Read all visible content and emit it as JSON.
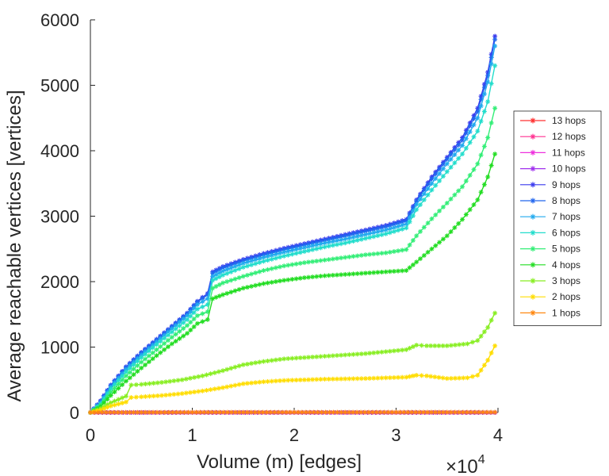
{
  "chart_data": {
    "type": "line",
    "title": "",
    "xlabel": "Volume (m) [edges]",
    "ylabel": "Average reachable vertices [vertices]",
    "x_multiplier_label": "×10",
    "x_multiplier_exponent": "4",
    "xlim": [
      0,
      4
    ],
    "ylim": [
      0,
      6000
    ],
    "x_ticks": [
      0,
      1,
      2,
      3,
      4
    ],
    "x_tick_labels": [
      "0",
      "1",
      "2",
      "3",
      "4"
    ],
    "y_ticks": [
      0,
      1000,
      2000,
      3000,
      4000,
      5000,
      6000
    ],
    "y_tick_labels": [
      "0",
      "1000",
      "2000",
      "3000",
      "4000",
      "5000",
      "6000"
    ],
    "legend_position": "right",
    "marker": "asterisk",
    "series": [
      {
        "name": "13 hops",
        "color": "#ff3030",
        "x": [
          0,
          1,
          2,
          3,
          3.97
        ],
        "values": [
          0,
          0,
          0,
          0,
          0
        ]
      },
      {
        "name": "12 hops",
        "color": "#ff3090",
        "x": [
          0,
          1,
          2,
          3,
          3.97
        ],
        "values": [
          0,
          0,
          0,
          0,
          0
        ]
      },
      {
        "name": "11 hops",
        "color": "#ee30dd",
        "x": [
          0,
          1,
          2,
          3,
          3.97
        ],
        "values": [
          0,
          0,
          0,
          0,
          0
        ]
      },
      {
        "name": "10 hops",
        "color": "#a030ee",
        "x": [
          0,
          1,
          2,
          3,
          3.97
        ],
        "values": [
          0,
          0,
          0,
          0,
          0
        ]
      },
      {
        "name": "9 hops",
        "color": "#3a3aee",
        "x": [
          0,
          0.1,
          0.2,
          0.35,
          0.5,
          0.65,
          0.8,
          0.95,
          1.05,
          1.15,
          1.2,
          1.3,
          1.5,
          1.7,
          1.9,
          2.1,
          2.3,
          2.5,
          2.7,
          2.9,
          3.1,
          3.2,
          3.35,
          3.5,
          3.65,
          3.8,
          3.9,
          3.97
        ],
        "values": [
          0,
          180,
          420,
          700,
          920,
          1120,
          1320,
          1520,
          1700,
          1820,
          2150,
          2230,
          2340,
          2430,
          2510,
          2580,
          2650,
          2720,
          2790,
          2860,
          2950,
          3250,
          3600,
          3900,
          4200,
          4650,
          5200,
          5750
        ]
      },
      {
        "name": "8 hops",
        "color": "#2266ee",
        "x": [
          0,
          0.1,
          0.2,
          0.35,
          0.5,
          0.65,
          0.8,
          0.95,
          1.05,
          1.15,
          1.2,
          1.3,
          1.5,
          1.7,
          1.9,
          2.1,
          2.3,
          2.5,
          2.7,
          2.9,
          3.1,
          3.2,
          3.35,
          3.5,
          3.65,
          3.8,
          3.9,
          3.97
        ],
        "values": [
          0,
          170,
          410,
          690,
          910,
          1110,
          1310,
          1510,
          1690,
          1800,
          2130,
          2210,
          2320,
          2410,
          2490,
          2560,
          2630,
          2700,
          2770,
          2840,
          2930,
          3230,
          3570,
          3870,
          4160,
          4600,
          5150,
          5700
        ]
      },
      {
        "name": "7 hops",
        "color": "#22aaee",
        "x": [
          0,
          0.1,
          0.2,
          0.35,
          0.5,
          0.65,
          0.8,
          0.95,
          1.05,
          1.15,
          1.2,
          1.3,
          1.5,
          1.7,
          1.9,
          2.1,
          2.3,
          2.5,
          2.7,
          2.9,
          3.1,
          3.2,
          3.35,
          3.5,
          3.65,
          3.8,
          3.9,
          3.97
        ],
        "values": [
          0,
          150,
          390,
          660,
          880,
          1080,
          1280,
          1480,
          1650,
          1740,
          2080,
          2160,
          2280,
          2370,
          2450,
          2520,
          2590,
          2650,
          2720,
          2790,
          2880,
          3180,
          3500,
          3800,
          4080,
          4500,
          5050,
          5600
        ]
      },
      {
        "name": "6 hops",
        "color": "#22ddcc",
        "x": [
          0,
          0.1,
          0.2,
          0.35,
          0.5,
          0.65,
          0.8,
          0.95,
          1.05,
          1.15,
          1.2,
          1.3,
          1.5,
          1.7,
          1.9,
          2.1,
          2.3,
          2.5,
          2.7,
          2.9,
          3.1,
          3.2,
          3.35,
          3.5,
          3.65,
          3.8,
          3.9,
          3.97
        ],
        "values": [
          0,
          130,
          360,
          620,
          840,
          1040,
          1230,
          1420,
          1580,
          1650,
          2020,
          2100,
          2220,
          2310,
          2390,
          2460,
          2530,
          2590,
          2660,
          2730,
          2820,
          3100,
          3400,
          3680,
          3950,
          4300,
          4750,
          5300
        ]
      },
      {
        "name": "5 hops",
        "color": "#33ee77",
        "x": [
          0,
          0.1,
          0.2,
          0.35,
          0.5,
          0.65,
          0.8,
          0.95,
          1.05,
          1.15,
          1.2,
          1.3,
          1.5,
          1.7,
          1.9,
          2.1,
          2.3,
          2.5,
          2.7,
          2.9,
          3.1,
          3.2,
          3.35,
          3.5,
          3.65,
          3.8,
          3.9,
          3.97
        ],
        "values": [
          0,
          110,
          310,
          560,
          770,
          960,
          1150,
          1330,
          1480,
          1540,
          1900,
          1980,
          2080,
          2170,
          2240,
          2290,
          2330,
          2370,
          2410,
          2440,
          2490,
          2700,
          2960,
          3200,
          3450,
          3800,
          4200,
          4650
        ]
      },
      {
        "name": "4 hops",
        "color": "#22dd22",
        "x": [
          0,
          0.1,
          0.2,
          0.35,
          0.5,
          0.65,
          0.8,
          0.95,
          1.05,
          1.15,
          1.2,
          1.3,
          1.5,
          1.7,
          1.9,
          2.1,
          2.3,
          2.5,
          2.7,
          2.9,
          3.1,
          3.2,
          3.35,
          3.5,
          3.65,
          3.8,
          3.9,
          3.97
        ],
        "values": [
          0,
          90,
          260,
          480,
          680,
          870,
          1050,
          1210,
          1360,
          1420,
          1740,
          1800,
          1900,
          1970,
          2020,
          2060,
          2090,
          2110,
          2130,
          2150,
          2170,
          2300,
          2500,
          2700,
          2950,
          3250,
          3600,
          3950
        ]
      },
      {
        "name": "3 hops",
        "color": "#88ee22",
        "x": [
          0,
          0.1,
          0.2,
          0.35,
          0.4,
          0.5,
          0.7,
          0.9,
          1.1,
          1.3,
          1.5,
          1.7,
          1.9,
          2.1,
          2.3,
          2.5,
          2.7,
          2.9,
          3.1,
          3.2,
          3.3,
          3.5,
          3.7,
          3.8,
          3.9,
          3.97
        ],
        "values": [
          0,
          60,
          150,
          250,
          420,
          430,
          460,
          500,
          560,
          640,
          730,
          780,
          820,
          840,
          860,
          880,
          900,
          930,
          960,
          1030,
          1020,
          1020,
          1050,
          1100,
          1300,
          1520
        ]
      },
      {
        "name": "2 hops",
        "color": "#ffdd00",
        "x": [
          0,
          0.1,
          0.2,
          0.35,
          0.4,
          0.5,
          0.7,
          0.9,
          1.1,
          1.3,
          1.5,
          1.7,
          1.9,
          2.1,
          2.3,
          2.5,
          2.7,
          2.9,
          3.1,
          3.2,
          3.3,
          3.5,
          3.7,
          3.8,
          3.9,
          3.97
        ],
        "values": [
          0,
          40,
          100,
          160,
          230,
          240,
          260,
          290,
          330,
          380,
          440,
          470,
          490,
          500,
          510,
          515,
          520,
          530,
          540,
          570,
          560,
          520,
          530,
          570,
          800,
          1020
        ]
      },
      {
        "name": "1 hops",
        "color": "#ff8811",
        "x": [
          0,
          0.5,
          1,
          1.5,
          2,
          2.5,
          3,
          3.5,
          3.97
        ],
        "values": [
          3,
          3,
          4,
          4,
          4,
          4,
          5,
          5,
          5
        ]
      }
    ]
  }
}
